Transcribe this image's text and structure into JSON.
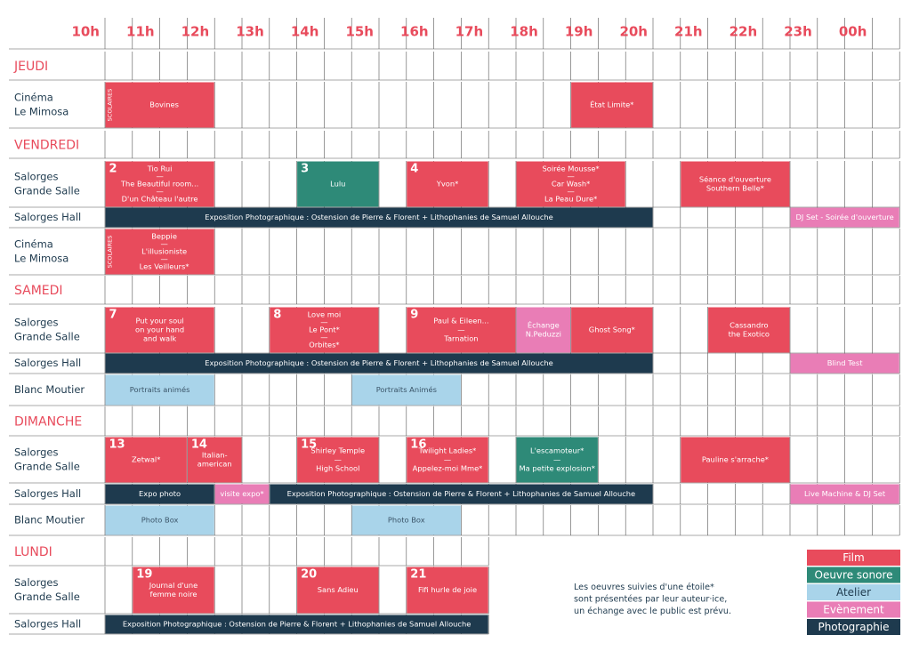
{
  "hours": [
    "10h",
    "11h",
    "12h",
    "13h",
    "14h",
    "15h",
    "16h",
    "17h",
    "18h",
    "19h",
    "20h",
    "21h",
    "22h",
    "23h",
    "00h"
  ],
  "days": [
    {
      "name": "JEUDI",
      "rows": [
        {
          "venue": [
            "Cinéma",
            "Le Mimosa"
          ],
          "events": [
            {
              "lines": [
                "Bovines"
              ],
              "scolaires": "SCOLAIRES",
              "color": "#e84b5c"
            },
            {
              "lines": [
                "État Limite*"
              ],
              "color": "#e84b5c"
            }
          ]
        }
      ]
    },
    {
      "name": "VENDREDI",
      "rows": [
        {
          "venue": [
            "Salorges",
            "Grande Salle"
          ],
          "events": [
            {
              "number": "2",
              "lines": [
                "Tio Rui",
                "—",
                "The Beautiful room...",
                "—",
                "D'un Château l'autre"
              ],
              "color": "#e84b5c"
            },
            {
              "number": "3",
              "lines": [
                "Lulu"
              ],
              "color": "#2e8a78"
            },
            {
              "number": "4",
              "lines": [
                "Yvon*"
              ],
              "color": "#e84b5c"
            },
            {
              "lines": [
                "Soirée Mousse*",
                "—",
                "Car Wash*",
                "—",
                "La Peau Dure*"
              ],
              "color": "#e84b5c"
            },
            {
              "lines": [
                "Séance d'ouverture",
                "Southern Belle*"
              ],
              "color": "#e84b5c"
            }
          ]
        },
        {
          "venue": [
            "Salorges Hall"
          ],
          "events": [
            {
              "lines": [
                "Exposition Photographique : Ostension de Pierre & Florent + Lithophanies de Samuel Allouche"
              ],
              "color": "#1e3a4e"
            },
            {
              "lines": [
                "DJ Set - Soirée d'ouverture"
              ],
              "color": "#e97db6"
            }
          ]
        },
        {
          "venue": [
            "Cinéma",
            "Le Mimosa"
          ],
          "events": [
            {
              "lines": [
                "Beppie",
                "—",
                "L'illusioniste",
                "—",
                "Les Veilleurs*"
              ],
              "scolaires": "SCOLAIRES",
              "color": "#e84b5c"
            }
          ]
        }
      ]
    },
    {
      "name": "SAMEDI",
      "rows": [
        {
          "venue": [
            "Salorges",
            "Grande Salle"
          ],
          "events": [
            {
              "number": "7",
              "lines": [
                "Put your soul",
                "on your hand",
                "and walk"
              ],
              "color": "#e84b5c"
            },
            {
              "number": "8",
              "lines": [
                "Love moi",
                "—",
                "Le Pont*",
                "—",
                "Orbites*"
              ],
              "color": "#e84b5c"
            },
            {
              "number": "9",
              "lines": [
                "Paul & Eileen...",
                "—",
                "Tarnation"
              ],
              "color": "#e84b5c"
            },
            {
              "lines": [
                "Échange",
                "N.Peduzzi"
              ],
              "color": "#e97db6"
            },
            {
              "lines": [
                "Ghost Song*"
              ],
              "color": "#e84b5c"
            },
            {
              "lines": [
                "Cassandro",
                "the Exotico"
              ],
              "color": "#e84b5c"
            }
          ]
        },
        {
          "venue": [
            "Salorges Hall"
          ],
          "events": [
            {
              "lines": [
                "Exposition Photographique : Ostension de Pierre & Florent + Lithophanies de Samuel Allouche"
              ],
              "color": "#1e3a4e"
            },
            {
              "lines": [
                "Blind Test"
              ],
              "color": "#e97db6"
            }
          ]
        },
        {
          "venue": [
            "Blanc Moutier"
          ],
          "events": [
            {
              "lines": [
                "Portraits animés"
              ],
              "color": "#a9d4ea"
            },
            {
              "lines": [
                "Portraits Animés"
              ],
              "color": "#a9d4ea"
            }
          ]
        }
      ]
    },
    {
      "name": "DIMANCHE",
      "rows": [
        {
          "venue": [
            "Salorges",
            "Grande Salle"
          ],
          "events": [
            {
              "number": "13",
              "lines": [
                "Zetwal*"
              ],
              "color": "#e84b5c"
            },
            {
              "number": "14",
              "lines": [
                "Italian-",
                "american"
              ],
              "color": "#e84b5c"
            },
            {
              "number": "15",
              "lines": [
                "Shirley Temple",
                "—",
                "High School"
              ],
              "color": "#e84b5c"
            },
            {
              "number": "16",
              "lines": [
                "Twilight Ladies*",
                "—",
                "Appelez-moi Mme*"
              ],
              "color": "#e84b5c"
            },
            {
              "lines": [
                "L'escamoteur*",
                "—",
                "Ma petite explosion*"
              ],
              "color": "#2e8a78"
            },
            {
              "lines": [
                "Pauline s'arrache*"
              ],
              "color": "#e84b5c"
            }
          ]
        },
        {
          "venue": [
            "Salorges Hall"
          ],
          "events": [
            {
              "lines": [
                "Expo photo"
              ],
              "color": "#1e3a4e"
            },
            {
              "lines": [
                "visite expo*"
              ],
              "color": "#e97db6"
            },
            {
              "lines": [
                "Exposition Photographique : Ostension de Pierre & Florent + Lithophanies de Samuel Allouche"
              ],
              "color": "#1e3a4e"
            },
            {
              "lines": [
                "Live Machine & DJ Set"
              ],
              "color": "#e97db6"
            }
          ]
        },
        {
          "venue": [
            "Blanc Moutier"
          ],
          "events": [
            {
              "lines": [
                "Photo Box"
              ],
              "color": "#a9d4ea"
            },
            {
              "lines": [
                "Photo Box"
              ],
              "color": "#a9d4ea"
            }
          ]
        }
      ]
    },
    {
      "name": "LUNDI",
      "rows": [
        {
          "venue": [
            "Salorges",
            "Grande Salle"
          ],
          "events": [
            {
              "number": "19",
              "lines": [
                "Journal d'une",
                "femme noire"
              ],
              "color": "#e84b5c"
            },
            {
              "number": "20",
              "lines": [
                "Sans Adieu"
              ],
              "color": "#e84b5c"
            },
            {
              "number": "21",
              "lines": [
                "Fifi hurle de joie"
              ],
              "color": "#e84b5c"
            }
          ]
        },
        {
          "venue": [
            "Salorges Hall"
          ],
          "events": [
            {
              "lines": [
                "Exposition Photographique : Ostension de Pierre & Florent + Lithophanies de Samuel Allouche"
              ],
              "color": "#1e3a4e"
            }
          ]
        }
      ]
    }
  ],
  "note": [
    "Les oeuvres suivies d'une étoile*",
    "sont présentées par leur auteur·ice,",
    "un échange avec le public est prévu."
  ],
  "legend": [
    {
      "label": "Film",
      "color": "#e84b5c"
    },
    {
      "label": "Oeuvre sonore",
      "color": "#2e8a78"
    },
    {
      "label": "Atelier",
      "color": "#a9d4ea"
    },
    {
      "label": "Evènement",
      "color": "#e97db6"
    },
    {
      "label": "Photographie",
      "color": "#1e3a4e"
    }
  ]
}
